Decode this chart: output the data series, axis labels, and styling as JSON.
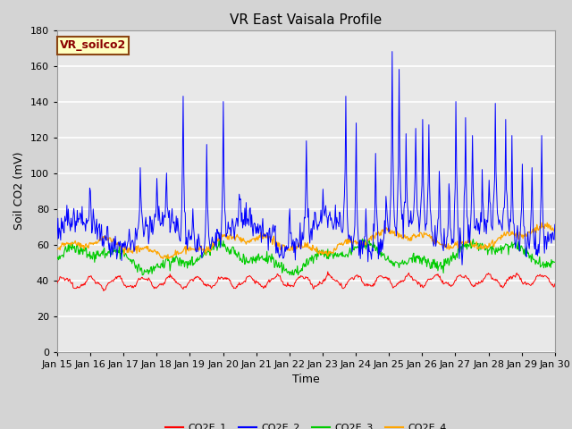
{
  "title": "VR East Vaisala Profile",
  "xlabel": "Time",
  "ylabel": "Soil CO2 (mV)",
  "ylim": [
    0,
    180
  ],
  "yticks": [
    0,
    20,
    40,
    60,
    80,
    100,
    120,
    140,
    160,
    180
  ],
  "annotation_text": "VR_soilco2",
  "x_tick_days": [
    15,
    16,
    17,
    18,
    19,
    20,
    21,
    22,
    23,
    24,
    25,
    26,
    27,
    28,
    29,
    30
  ],
  "series_colors": {
    "CO2E_1": "#ff0000",
    "CO2E_2": "#0000ff",
    "CO2E_3": "#00cc00",
    "CO2E_4": "#ffa500"
  },
  "series_labels": [
    "CO2E_1",
    "CO2E_2",
    "CO2E_3",
    "CO2E_4"
  ],
  "fig_facecolor": "#d4d4d4",
  "plot_facecolor": "#e8e8e8",
  "grid_color": "#ffffff",
  "title_fontsize": 11,
  "axis_label_fontsize": 9,
  "tick_fontsize": 8,
  "legend_fontsize": 8,
  "annotation_fontsize": 9
}
